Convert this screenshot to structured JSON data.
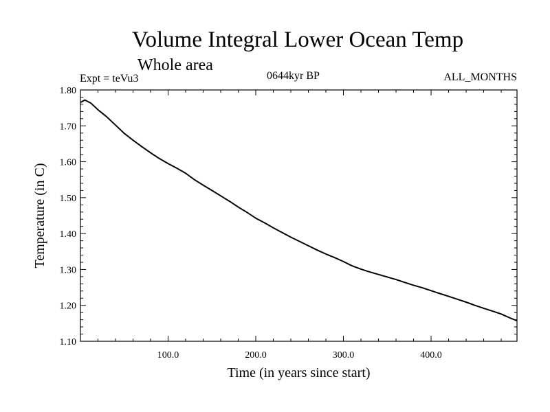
{
  "header": {
    "title": "Volume Integral Lower Ocean Temp",
    "subtitle": "Whole area",
    "experiment": "Expt = teVu3",
    "period": "0644kyr BP",
    "months": "ALL_MONTHS"
  },
  "chart_data": {
    "type": "line",
    "xlabel": "Time (in years since start)",
    "ylabel": "Temperature (in C)",
    "xlim": [
      0,
      498
    ],
    "ylim": [
      1.1,
      1.8
    ],
    "xticks": [
      100,
      200,
      300,
      400
    ],
    "xtick_labels": [
      "100.0",
      "200.0",
      "300.0",
      "400.0"
    ],
    "yticks": [
      1.1,
      1.2,
      1.3,
      1.4,
      1.5,
      1.6,
      1.7,
      1.8
    ],
    "ytick_labels": [
      "1.10",
      "1.20",
      "1.30",
      "1.40",
      "1.50",
      "1.60",
      "1.70",
      "1.80"
    ],
    "grid": false,
    "series": [
      {
        "x": [
          0,
          5,
          12,
          20,
          30,
          40,
          50,
          60,
          70,
          80,
          90,
          100,
          110,
          120,
          130,
          140,
          150,
          160,
          170,
          180,
          190,
          200,
          210,
          220,
          230,
          240,
          250,
          260,
          270,
          280,
          290,
          300,
          310,
          320,
          330,
          340,
          350,
          360,
          370,
          380,
          390,
          400,
          410,
          420,
          430,
          440,
          450,
          460,
          470,
          480,
          490,
          498
        ],
        "y": [
          1.765,
          1.772,
          1.763,
          1.745,
          1.725,
          1.702,
          1.679,
          1.66,
          1.642,
          1.625,
          1.609,
          1.595,
          1.582,
          1.568,
          1.55,
          1.535,
          1.52,
          1.505,
          1.49,
          1.474,
          1.459,
          1.443,
          1.43,
          1.416,
          1.403,
          1.39,
          1.378,
          1.366,
          1.354,
          1.343,
          1.333,
          1.322,
          1.31,
          1.301,
          1.293,
          1.286,
          1.279,
          1.272,
          1.264,
          1.256,
          1.249,
          1.241,
          1.233,
          1.225,
          1.217,
          1.209,
          1.2,
          1.192,
          1.184,
          1.176,
          1.165,
          1.157
        ],
        "color": "#000000"
      }
    ]
  }
}
